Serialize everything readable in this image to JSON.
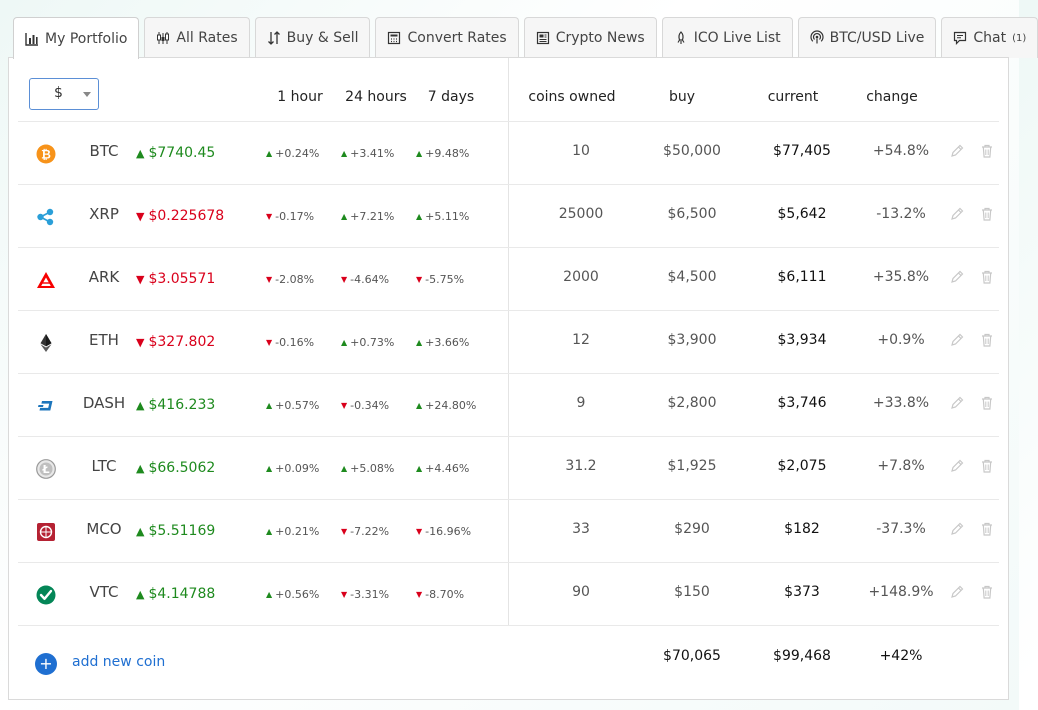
{
  "tabs": [
    {
      "label": "My Portfolio",
      "icon": "bar-chart-icon",
      "active": true
    },
    {
      "label": "All Rates",
      "icon": "candlestick-icon"
    },
    {
      "label": "Buy & Sell",
      "icon": "exchange-icon"
    },
    {
      "label": "Convert Rates",
      "icon": "calculator-icon"
    },
    {
      "label": "Crypto News",
      "icon": "newspaper-icon"
    },
    {
      "label": "ICO Live List",
      "icon": "rocket-icon"
    },
    {
      "label": "BTC/USD Live",
      "icon": "broadcast-icon"
    },
    {
      "label": "Chat",
      "icon": "chat-icon",
      "count": "(1)"
    }
  ],
  "currency": {
    "selected": "$"
  },
  "headers": {
    "h1": "1 hour",
    "h24": "24 hours",
    "d7": "7 days",
    "owned": "coins owned",
    "buy": "buy",
    "current": "current",
    "change": "change"
  },
  "colors": {
    "up": "#1e8a1e",
    "down": "#d9001b",
    "accent": "#1f6fd1"
  },
  "coins": [
    {
      "symbol": "BTC",
      "icon": "bitcoin-icon",
      "price_dir": "up",
      "price": "$7740.45",
      "h1_dir": "up",
      "h1": "+0.24%",
      "h24_dir": "up",
      "h24": "+3.41%",
      "d7_dir": "up",
      "d7": "+9.48%",
      "owned": "10",
      "buy": "$50,000",
      "current": "$77,405",
      "change_dir": "up",
      "change": "+54.8%"
    },
    {
      "symbol": "XRP",
      "icon": "ripple-icon",
      "price_dir": "down",
      "price": "$0.225678",
      "h1_dir": "down",
      "h1": "-0.17%",
      "h24_dir": "up",
      "h24": "+7.21%",
      "d7_dir": "up",
      "d7": "+5.11%",
      "owned": "25000",
      "buy": "$6,500",
      "current": "$5,642",
      "change_dir": "down",
      "change": "-13.2%"
    },
    {
      "symbol": "ARK",
      "icon": "ark-icon",
      "price_dir": "down",
      "price": "$3.05571",
      "h1_dir": "down",
      "h1": "-2.08%",
      "h24_dir": "down",
      "h24": "-4.64%",
      "d7_dir": "down",
      "d7": "-5.75%",
      "owned": "2000",
      "buy": "$4,500",
      "current": "$6,111",
      "change_dir": "up",
      "change": "+35.8%"
    },
    {
      "symbol": "ETH",
      "icon": "ethereum-icon",
      "price_dir": "down",
      "price": "$327.802",
      "h1_dir": "down",
      "h1": "-0.16%",
      "h24_dir": "up",
      "h24": "+0.73%",
      "d7_dir": "up",
      "d7": "+3.66%",
      "owned": "12",
      "buy": "$3,900",
      "current": "$3,934",
      "change_dir": "up",
      "change": "+0.9%"
    },
    {
      "symbol": "DASH",
      "icon": "dash-icon",
      "price_dir": "up",
      "price": "$416.233",
      "h1_dir": "up",
      "h1": "+0.57%",
      "h24_dir": "down",
      "h24": "-0.34%",
      "d7_dir": "up",
      "d7": "+24.80%",
      "owned": "9",
      "buy": "$2,800",
      "current": "$3,746",
      "change_dir": "up",
      "change": "+33.8%"
    },
    {
      "symbol": "LTC",
      "icon": "litecoin-icon",
      "price_dir": "up",
      "price": "$66.5062",
      "h1_dir": "up",
      "h1": "+0.09%",
      "h24_dir": "up",
      "h24": "+5.08%",
      "d7_dir": "up",
      "d7": "+4.46%",
      "owned": "31.2",
      "buy": "$1,925",
      "current": "$2,075",
      "change_dir": "up",
      "change": "+7.8%"
    },
    {
      "symbol": "MCO",
      "icon": "crypto-com-icon",
      "price_dir": "up",
      "price": "$5.51169",
      "h1_dir": "up",
      "h1": "+0.21%",
      "h24_dir": "down",
      "h24": "-7.22%",
      "d7_dir": "down",
      "d7": "-16.96%",
      "owned": "33",
      "buy": "$290",
      "current": "$182",
      "change_dir": "down",
      "change": "-37.3%"
    },
    {
      "symbol": "VTC",
      "icon": "vertcoin-icon",
      "price_dir": "up",
      "price": "$4.14788",
      "h1_dir": "up",
      "h1": "+0.56%",
      "h24_dir": "down",
      "h24": "-3.31%",
      "d7_dir": "down",
      "d7": "-8.70%",
      "owned": "90",
      "buy": "$150",
      "current": "$373",
      "change_dir": "up",
      "change": "+148.9%"
    }
  ],
  "footer": {
    "add_label": "add new coin",
    "total_buy": "$70,065",
    "total_current": "$99,468",
    "total_change": "+42%"
  }
}
